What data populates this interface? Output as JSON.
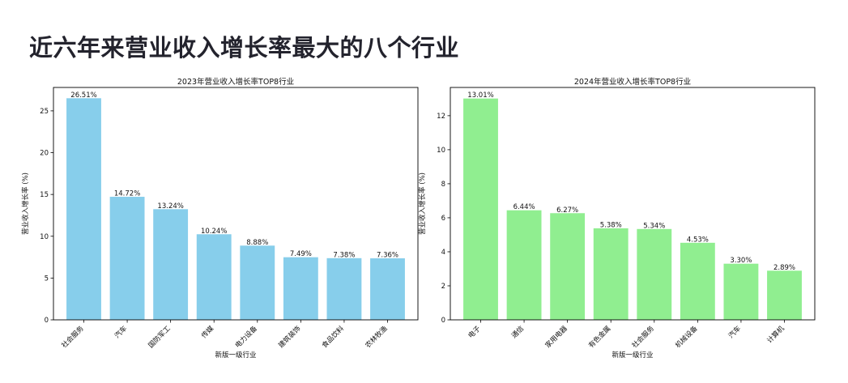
{
  "page": {
    "title": "近六年来营业收入增长率最大的八个行业"
  },
  "chart_data": [
    {
      "type": "bar",
      "title": "2023年营业收入增长率TOP8行业",
      "xlabel": "新版一级行业",
      "ylabel": "营业收入增长率 (%)",
      "categories": [
        "社会服务",
        "汽车",
        "国防军工",
        "传媒",
        "电力设备",
        "建筑装饰",
        "食品饮料",
        "农林牧渔"
      ],
      "values": [
        26.51,
        14.72,
        13.24,
        10.24,
        8.88,
        7.49,
        7.38,
        7.36
      ],
      "data_labels": [
        "26.51%",
        "14.72%",
        "13.24%",
        "10.24%",
        "8.88%",
        "7.49%",
        "7.38%",
        "7.36%"
      ],
      "ylim": [
        0,
        27.8
      ],
      "yticks": [
        0,
        5,
        10,
        15,
        20,
        25
      ],
      "bar_color": "#87ceeb",
      "grid": false
    },
    {
      "type": "bar",
      "title": "2024年营业收入增长率TOP8行业",
      "xlabel": "新版一级行业",
      "ylabel": "营业收入增长率 (%)",
      "categories": [
        "电子",
        "通信",
        "家用电器",
        "有色金属",
        "社会服务",
        "机械设备",
        "汽车",
        "计算机"
      ],
      "values": [
        13.01,
        6.44,
        6.27,
        5.38,
        5.34,
        4.53,
        3.3,
        2.89
      ],
      "data_labels": [
        "13.01%",
        "6.44%",
        "6.27%",
        "5.38%",
        "5.34%",
        "4.53%",
        "3.30%",
        "2.89%"
      ],
      "ylim": [
        0,
        13.66
      ],
      "yticks": [
        0,
        2,
        4,
        6,
        8,
        10,
        12
      ],
      "bar_color": "#90ee90",
      "grid": false
    }
  ]
}
